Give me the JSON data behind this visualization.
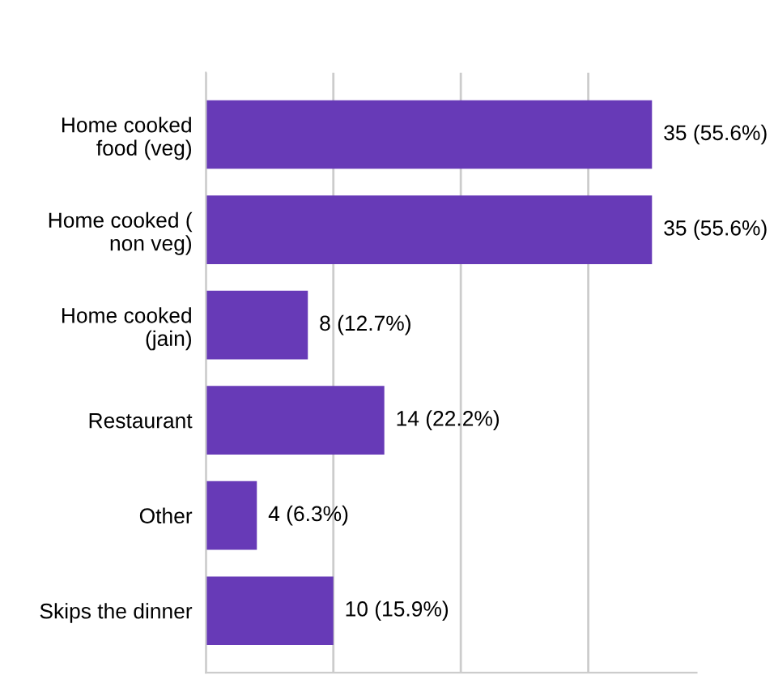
{
  "chart_data": {
    "type": "bar",
    "orientation": "horizontal",
    "categories": [
      "Home cooked\nfood (veg)",
      "Home cooked (\nnon veg)",
      "Home cooked\n(jain)",
      "Restaurant",
      "Other",
      "Skips the dinner"
    ],
    "values": [
      35,
      35,
      8,
      14,
      4,
      10
    ],
    "value_labels": [
      "35 (55.6%)",
      "35 (55.6%)",
      "8 (12.7%)",
      "14 (22.2%)",
      "4 (6.3%)",
      "10 (15.9%)"
    ],
    "color": "#673ab7",
    "xlim": [
      0,
      38.5
    ],
    "xticks": [
      {
        "value": 0,
        "label": null
      },
      {
        "value": 10,
        "label": null
      },
      {
        "value": 20,
        "label": null
      },
      {
        "value": 30,
        "label": null
      }
    ],
    "grid": "x",
    "tick_labels": "y",
    "legend": false
  }
}
